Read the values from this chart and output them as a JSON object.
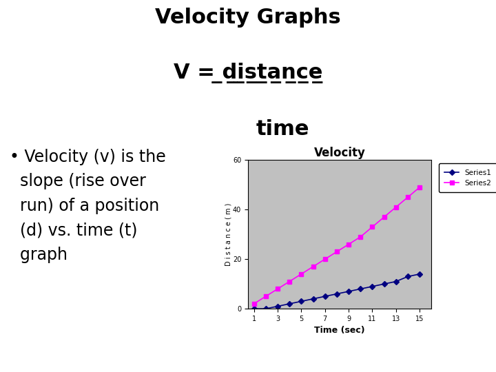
{
  "title_line1": "Velocity Graphs",
  "chart_title": "Velocity",
  "xlabel": "Time (sec)",
  "ylabel": "D i s t a n c e ( m )",
  "x_ticks": [
    1,
    3,
    5,
    7,
    9,
    11,
    13,
    15
  ],
  "y_ticks": [
    0,
    20,
    40,
    60
  ],
  "ylim": [
    0,
    60
  ],
  "xlim": [
    0.5,
    16
  ],
  "series1_x": [
    1,
    2,
    3,
    4,
    5,
    6,
    7,
    8,
    9,
    10,
    11,
    12,
    13,
    14,
    15
  ],
  "series1_y": [
    0,
    0,
    1,
    2,
    3,
    4,
    5,
    6,
    7,
    8,
    9,
    10,
    11,
    13,
    14
  ],
  "series2_x": [
    1,
    2,
    3,
    4,
    5,
    6,
    7,
    8,
    9,
    10,
    11,
    12,
    13,
    14,
    15
  ],
  "series2_y": [
    2,
    5,
    8,
    11,
    14,
    17,
    20,
    23,
    26,
    29,
    33,
    37,
    41,
    45,
    49
  ],
  "series1_color": "#000080",
  "series2_color": "#FF00FF",
  "plot_bg_color": "#C0C0C0",
  "fig_bg_color": "#FFFFFF",
  "legend1": "Series1",
  "legend2": "Series2",
  "outer_border_color": "#808080",
  "title_fontsize": 22,
  "bullet_fontsize": 17,
  "chart_title_fontsize": 12,
  "axis_label_fontsize": 9
}
